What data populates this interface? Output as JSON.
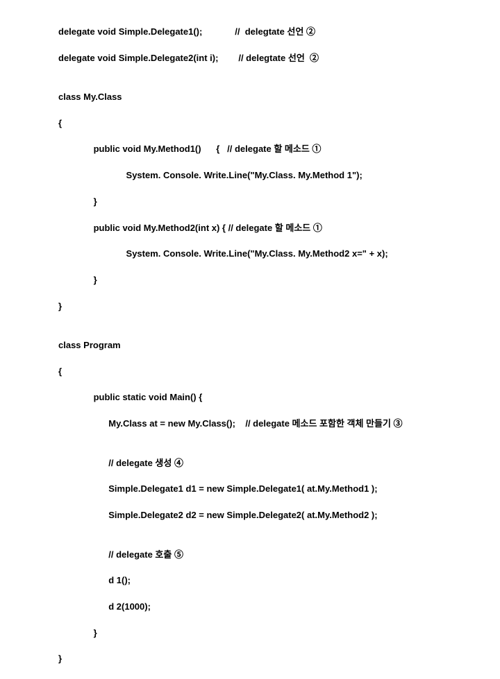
{
  "lines": [
    "delegate void Simple.Delegate1();             //  delegtate 선언 ②",
    "delegate void Simple.Delegate2(int i);        // delegtate 선언  ②",
    "",
    "class My.Class",
    "{",
    "              public void My.Method1()      {   // delegate 할 메소드 ①",
    "                           System. Console. Write.Line(\"My.Class. My.Method 1\");",
    "              }",
    "              public void My.Method2(int x) { // delegate 할 메소드 ①",
    "                           System. Console. Write.Line(\"My.Class. My.Method2 x=\" + x);",
    "              }",
    "}",
    "",
    "class Program",
    "{",
    "              public static void Main() {",
    "                    My.Class at = new My.Class();    // delegate 메소드 포함한 객체 만들기 ③",
    "",
    "                    // delegate 생성 ④",
    "                    Simple.Delegate1 d1 = new Simple.Delegate1( at.My.Method1 );",
    "                    Simple.Delegate2 d2 = new Simple.Delegate2( at.My.Method2 );",
    "",
    "                    // delegate 호출 ⑤",
    "                    d 1();",
    "                    d 2(1000);",
    "              }",
    "}"
  ]
}
